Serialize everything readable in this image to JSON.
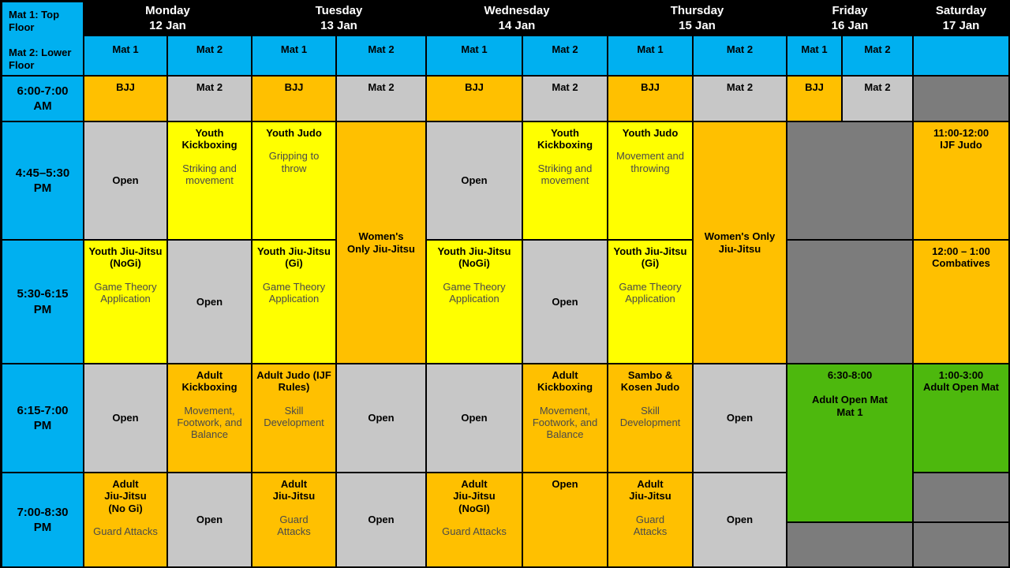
{
  "palette": {
    "cyan": "#00B0F0",
    "orange": "#FFC000",
    "yellow": "#FFFF00",
    "light_gray": "#C7C7C7",
    "dark_gray": "#7C7C7C",
    "green": "#4DB80D",
    "black": "#000000"
  },
  "legend": {
    "line1": "Mat 1: Top Floor",
    "line2": "Mat 2: Lower Floor"
  },
  "days": [
    {
      "name": "Monday",
      "date": "12 Jan"
    },
    {
      "name": "Tuesday",
      "date": "13 Jan"
    },
    {
      "name": "Wednesday",
      "date": "14 Jan"
    },
    {
      "name": "Thursday",
      "date": "15 Jan"
    },
    {
      "name": "Friday",
      "date": "16 Jan"
    },
    {
      "name": "Saturday",
      "date": "17 Jan"
    }
  ],
  "mats": {
    "mat1": "Mat 1",
    "mat2": "Mat 2"
  },
  "times": {
    "am": "6:00-7:00\nAM",
    "p445": "4:45–5:30\nPM",
    "p530": "5:30-6:15\nPM",
    "p615": "6:15-7:00\nPM",
    "p700": "7:00-8:30\nPM"
  },
  "cells": {
    "mon1_am": {
      "t": "BJJ"
    },
    "mon2_am": {
      "t": "Mat 2"
    },
    "tue1_am": {
      "t": "BJJ"
    },
    "tue2_am": {
      "t": "Mat 2"
    },
    "wed1_am": {
      "t": "BJJ"
    },
    "wed2_am": {
      "t": "Mat 2"
    },
    "thu1_am": {
      "t": "BJJ"
    },
    "thu2_am": {
      "t": "Mat 2"
    },
    "fri1_am": {
      "t": "BJJ"
    },
    "fri2_am": {
      "t": "Mat 2"
    },
    "mon1_445": {
      "t": "Open"
    },
    "mon2_445": {
      "t": "Youth Kickboxing",
      "s": "Striking and movement"
    },
    "tue1_445": {
      "t": "Youth Judo",
      "s": "Gripping to throw"
    },
    "tue2_womens": {
      "t": "Women's\nOnly Jiu-Jitsu"
    },
    "wed1_445": {
      "t": "Open"
    },
    "wed2_445": {
      "t": "Youth Kickboxing",
      "s": "Striking and movement"
    },
    "thu1_445": {
      "t": "Youth Judo",
      "s": "Movement and throwing"
    },
    "thu2_womens": {
      "t": "Women's Only\nJiu-Jitsu"
    },
    "sat_445": {
      "t": "11:00-12:00\nIJF Judo"
    },
    "mon1_530": {
      "t": "Youth Jiu-Jitsu (NoGi)",
      "s": "Game Theory Application"
    },
    "mon2_530": {
      "t": "Open"
    },
    "tue1_530": {
      "t": "Youth Jiu-Jitsu\n(Gi)",
      "s": "Game Theory Application"
    },
    "wed1_530": {
      "t": "Youth Jiu-Jitsu (NoGi)",
      "s": "Game Theory Application"
    },
    "wed2_530": {
      "t": "Open"
    },
    "thu1_530": {
      "t": "Youth Jiu-Jitsu\n(Gi)",
      "s": "Game Theory Application"
    },
    "sat_530": {
      "t": "12:00 – 1:00\nCombatives"
    },
    "mon1_615": {
      "t": "Open"
    },
    "mon2_615": {
      "t": "Adult Kickboxing",
      "s": "Movement, Footwork, and Balance"
    },
    "tue1_615": {
      "t": "Adult Judo (IJF Rules)",
      "s": "Skill Development"
    },
    "tue2_615": {
      "t": "Open"
    },
    "wed1_615": {
      "t": "Open"
    },
    "wed2_615": {
      "t": "Adult Kickboxing",
      "s": "Movement, Footwork, and Balance"
    },
    "thu1_615": {
      "t": "Sambo & Kosen Judo",
      "s": "Skill Development"
    },
    "thu2_615": {
      "t": "Open"
    },
    "fri_open_mat": {
      "t": "6:30-8:00",
      "s": "Adult Open Mat\nMat 1"
    },
    "sat_615": {
      "t": "1:00-3:00\nAdult Open Mat"
    },
    "mon1_700": {
      "t": "Adult\nJiu-Jitsu\n(No Gi)",
      "s": "Guard Attacks"
    },
    "mon2_700": {
      "t": "Open"
    },
    "tue1_700": {
      "t": "Adult\nJiu-Jitsu",
      "s": "Guard\nAttacks"
    },
    "tue2_700": {
      "t": "Open"
    },
    "wed1_700": {
      "t": "Adult\nJiu-Jitsu\n(NoGI)",
      "s": "Guard Attacks"
    },
    "wed2_700": {
      "t": "Open"
    },
    "thu1_700": {
      "t": "Adult\nJiu-Jitsu",
      "s": "Guard\nAttacks"
    },
    "thu2_700": {
      "t": "Open"
    }
  }
}
